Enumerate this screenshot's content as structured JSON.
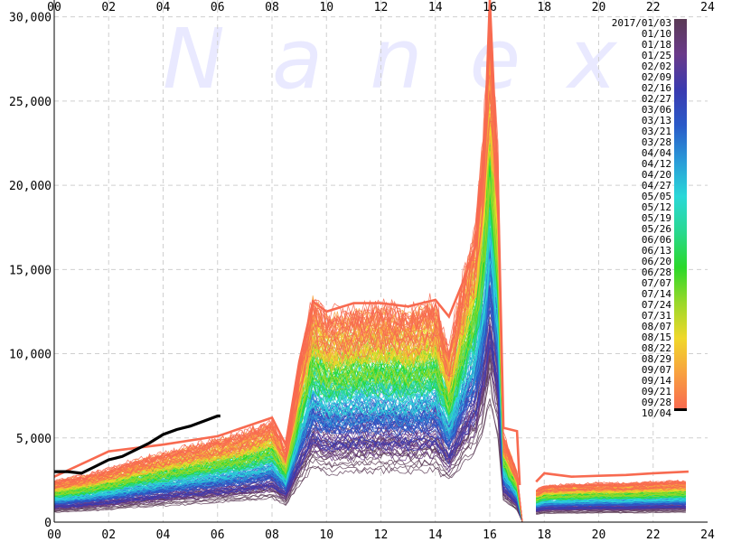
{
  "chart_data": {
    "type": "line",
    "watermark": "Nanex",
    "x_ticks": [
      "00",
      "02",
      "04",
      "06",
      "08",
      "10",
      "12",
      "14",
      "16",
      "18",
      "20",
      "22",
      "24"
    ],
    "y_ticks": [
      "0",
      "5,000",
      "10,000",
      "15,000",
      "20,000",
      "25,000",
      "30,000"
    ],
    "xlim": [
      0,
      24
    ],
    "ylim": [
      0,
      31000
    ],
    "grid": true,
    "legend_placement": "right",
    "legend_dates": [
      "2017/01/03",
      "01/10",
      "01/18",
      "01/25",
      "02/02",
      "02/09",
      "02/16",
      "02/27",
      "03/06",
      "03/13",
      "03/21",
      "03/28",
      "04/04",
      "04/12",
      "04/20",
      "04/27",
      "05/05",
      "05/12",
      "05/19",
      "05/26",
      "06/06",
      "06/13",
      "06/20",
      "06/28",
      "07/07",
      "07/14",
      "07/24",
      "07/31",
      "08/07",
      "08/15",
      "08/22",
      "08/29",
      "09/07",
      "09/14",
      "09/21",
      "09/28",
      "10/04"
    ],
    "colorscale": [
      "#5a3a55",
      "#6a3a8a",
      "#3a3ab0",
      "#2a5ac8",
      "#2a9ad8",
      "#2ad8d8",
      "#2ad890",
      "#2ad82a",
      "#9ad82a",
      "#f0d82a",
      "#f8a040",
      "#f86a50"
    ],
    "highlight_color": "#000000",
    "peak_color": "#f86a50",
    "series_count": 190,
    "reference_profile": {
      "x": [
        0,
        1,
        2,
        3,
        4,
        5,
        6,
        7,
        8,
        8.5,
        9,
        9.5,
        10,
        11,
        12,
        13,
        14,
        14.5,
        15,
        15.5,
        15.8,
        16,
        16.3,
        16.5,
        17,
        17.2
      ],
      "y": [
        1800,
        2000,
        2300,
        2700,
        3000,
        3300,
        3600,
        3900,
        4400,
        3200,
        6800,
        9800,
        9000,
        9200,
        9400,
        9200,
        9600,
        7500,
        10500,
        13000,
        17500,
        22000,
        16000,
        3800,
        2200,
        0
      ]
    },
    "evening_profile": {
      "x": [
        17.7,
        18,
        19,
        20,
        21,
        22,
        23,
        23.3
      ],
      "y": [
        1400,
        1600,
        1650,
        1700,
        1700,
        1750,
        1800,
        1800
      ]
    },
    "highlight_series": {
      "label": "10/04",
      "x": [
        0,
        0.5,
        1,
        1.5,
        2,
        2.5,
        3,
        3.5,
        4,
        4.5,
        5,
        5.5,
        6,
        6.1
      ],
      "y": [
        3000,
        3000,
        2900,
        3300,
        3700,
        3900,
        4300,
        4700,
        5200,
        5500,
        5700,
        6000,
        6300,
        6300
      ]
    },
    "max_series": {
      "x": [
        0,
        2,
        4,
        6,
        8,
        8.5,
        9,
        9.5,
        10,
        11,
        12,
        13,
        14,
        14.5,
        15,
        15.5,
        15.8,
        16,
        16.3,
        16.5,
        17,
        17.1
      ],
      "y": [
        2700,
        4200,
        4600,
        5100,
        6200,
        4600,
        9500,
        13100,
        12500,
        13000,
        13000,
        12800,
        13200,
        12200,
        14200,
        16500,
        22000,
        31000,
        20000,
        5600,
        5400,
        2200
      ]
    }
  }
}
